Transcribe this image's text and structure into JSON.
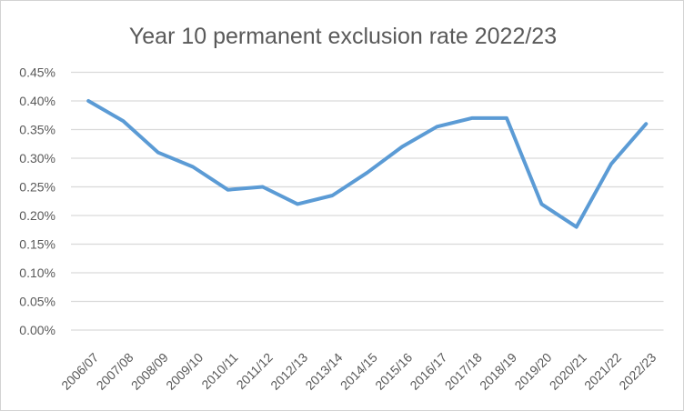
{
  "chart_data": {
    "type": "line",
    "title": "Year 10 permanent exclusion rate 2022/23",
    "categories": [
      "2006/07",
      "2007/08",
      "2008/09",
      "2009/10",
      "2010/11",
      "2011/12",
      "2012/13",
      "2013/14",
      "2014/15",
      "2015/16",
      "2016/17",
      "2017/18",
      "2018/19",
      "2019/20",
      "2020/21",
      "2021/22",
      "2022/23"
    ],
    "values": [
      0.4,
      0.365,
      0.31,
      0.285,
      0.245,
      0.25,
      0.22,
      0.235,
      0.275,
      0.32,
      0.355,
      0.37,
      0.37,
      0.22,
      0.18,
      0.29,
      0.36
    ],
    "unit": "%",
    "xlabel": "",
    "ylabel": "",
    "ylim": [
      0,
      0.45
    ],
    "y_ticks": [
      0,
      0.05,
      0.1,
      0.15,
      0.2,
      0.25,
      0.3,
      0.35,
      0.4,
      0.45
    ],
    "y_tick_labels": [
      "0.00%",
      "0.05%",
      "0.10%",
      "0.15%",
      "0.20%",
      "0.25%",
      "0.30%",
      "0.35%",
      "0.40%",
      "0.45%"
    ],
    "grid": "horizontal",
    "legend": "none",
    "colors": {
      "line": "#5B9BD5",
      "gridline": "#D9D9D9",
      "text": "#595959",
      "border": "#D3D3D3",
      "background": "#FFFFFF"
    }
  }
}
